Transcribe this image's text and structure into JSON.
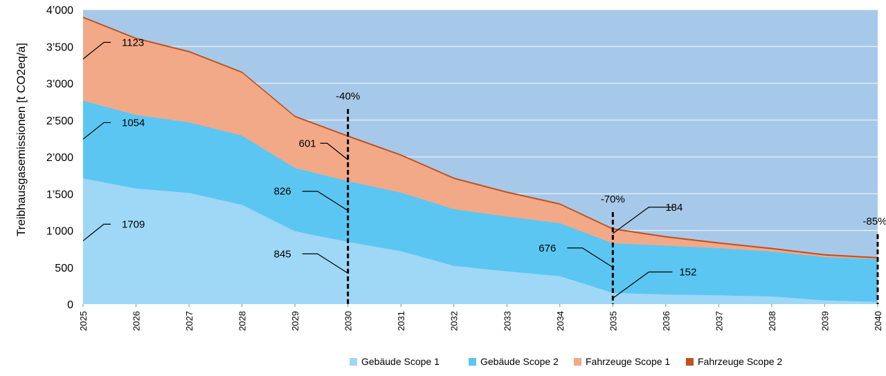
{
  "chart_data": {
    "type": "area",
    "stacked": true,
    "ylabel": "Treibhausgasemissionen [t CO2eq/a]",
    "ylim": [
      0,
      4000
    ],
    "y_ticks": [
      0,
      500,
      1000,
      1500,
      2000,
      2500,
      3000,
      3500,
      4000
    ],
    "y_tick_labels": [
      "0",
      "500",
      "1’000",
      "1’500",
      "2’000",
      "2’500",
      "3’000",
      "3’500",
      "4’000"
    ],
    "x": [
      "2025",
      "2026",
      "2027",
      "2028",
      "2029",
      "2030",
      "2031",
      "2032",
      "2033",
      "2034",
      "2035",
      "2036",
      "2037",
      "2038",
      "2039",
      "2040"
    ],
    "grid": "horizontal",
    "legend_position": "bottom-right",
    "background_color": "#a7c9e9",
    "series": [
      {
        "name": "Gebäude Scope 1",
        "color": "#9ed8f6",
        "values": [
          1709,
          1570,
          1510,
          1350,
          990,
          845,
          720,
          520,
          445,
          380,
          152,
          130,
          120,
          105,
          50,
          30
        ]
      },
      {
        "name": "Gebäude Scope 2",
        "color": "#5bc6f1",
        "values": [
          1054,
          1000,
          960,
          940,
          860,
          826,
          795,
          770,
          745,
          720,
          676,
          665,
          640,
          610,
          590,
          580
        ]
      },
      {
        "name": "Fahrzeuge Scope 1",
        "color": "#f2a987",
        "values": [
          1123,
          1030,
          950,
          850,
          690,
          601,
          500,
          410,
          320,
          250,
          184,
          110,
          60,
          30,
          20,
          10
        ]
      },
      {
        "name": "Fahrzeuge Scope 2",
        "color": "#c5501c",
        "values": [
          20,
          20,
          20,
          20,
          20,
          20,
          20,
          20,
          20,
          20,
          20,
          20,
          20,
          20,
          20,
          20
        ]
      }
    ],
    "markers": [
      {
        "x": "2030",
        "label": "-40%",
        "top": 2650
      },
      {
        "x": "2035",
        "label": "-70%",
        "top": 1250
      },
      {
        "x": "2040",
        "label": "-85%",
        "top": 950
      }
    ],
    "annotations": [
      {
        "text": "1123",
        "x": "2025",
        "y": 3330
      },
      {
        "text": "1054",
        "x": "2025",
        "y": 2240
      },
      {
        "text": "1709",
        "x": "2025",
        "y": 860
      },
      {
        "text": "601",
        "x": "2030",
        "y": 1960
      },
      {
        "text": "826",
        "x": "2030",
        "y": 1270
      },
      {
        "text": "845",
        "x": "2030",
        "y": 420
      },
      {
        "text": "184",
        "x": "2035",
        "y": 960
      },
      {
        "text": "676",
        "x": "2035",
        "y": 500
      },
      {
        "text": "152",
        "x": "2035",
        "y": 80
      }
    ]
  }
}
